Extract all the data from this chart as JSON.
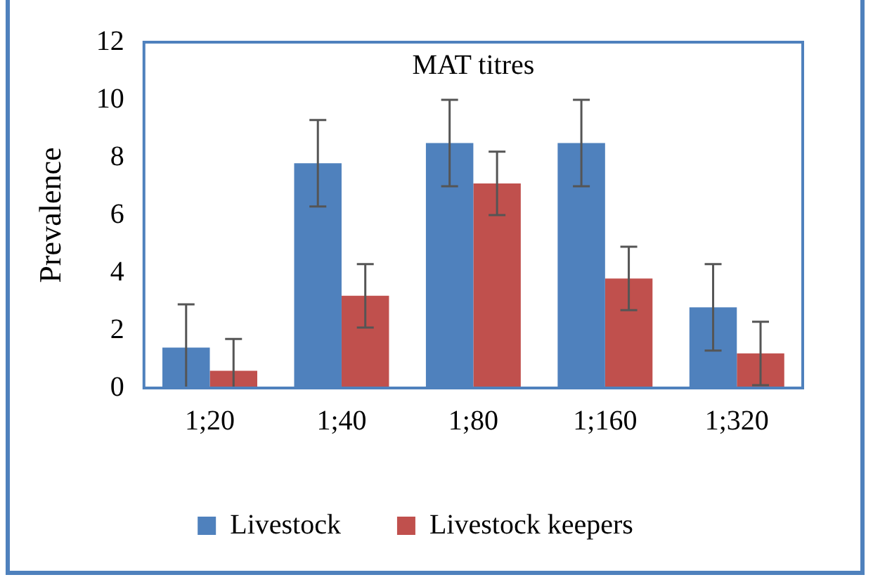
{
  "chart_data": {
    "type": "bar",
    "title": "MAT titres",
    "ylabel": "Prevalence",
    "categories": [
      "1;20",
      "1;40",
      "1;80",
      "1;160",
      "1;320"
    ],
    "series": [
      {
        "name": "Livestock",
        "color": "#4f81bd",
        "values": [
          1.4,
          7.8,
          8.5,
          8.5,
          2.8
        ],
        "errors": [
          [
            0,
            2.9
          ],
          1.5,
          1.5,
          1.5,
          1.5
        ]
      },
      {
        "name": "Livestock keepers",
        "color": "#c0504d",
        "values": [
          0.6,
          3.2,
          7.1,
          3.8,
          1.2
        ],
        "errors": [
          [
            0,
            1.7
          ],
          1.1,
          1.1,
          1.1,
          1.1
        ]
      }
    ],
    "ylim": [
      0,
      12
    ],
    "yticks": [
      0,
      2,
      4,
      6,
      8,
      10,
      12
    ],
    "grid": false,
    "legend": "bottom"
  }
}
